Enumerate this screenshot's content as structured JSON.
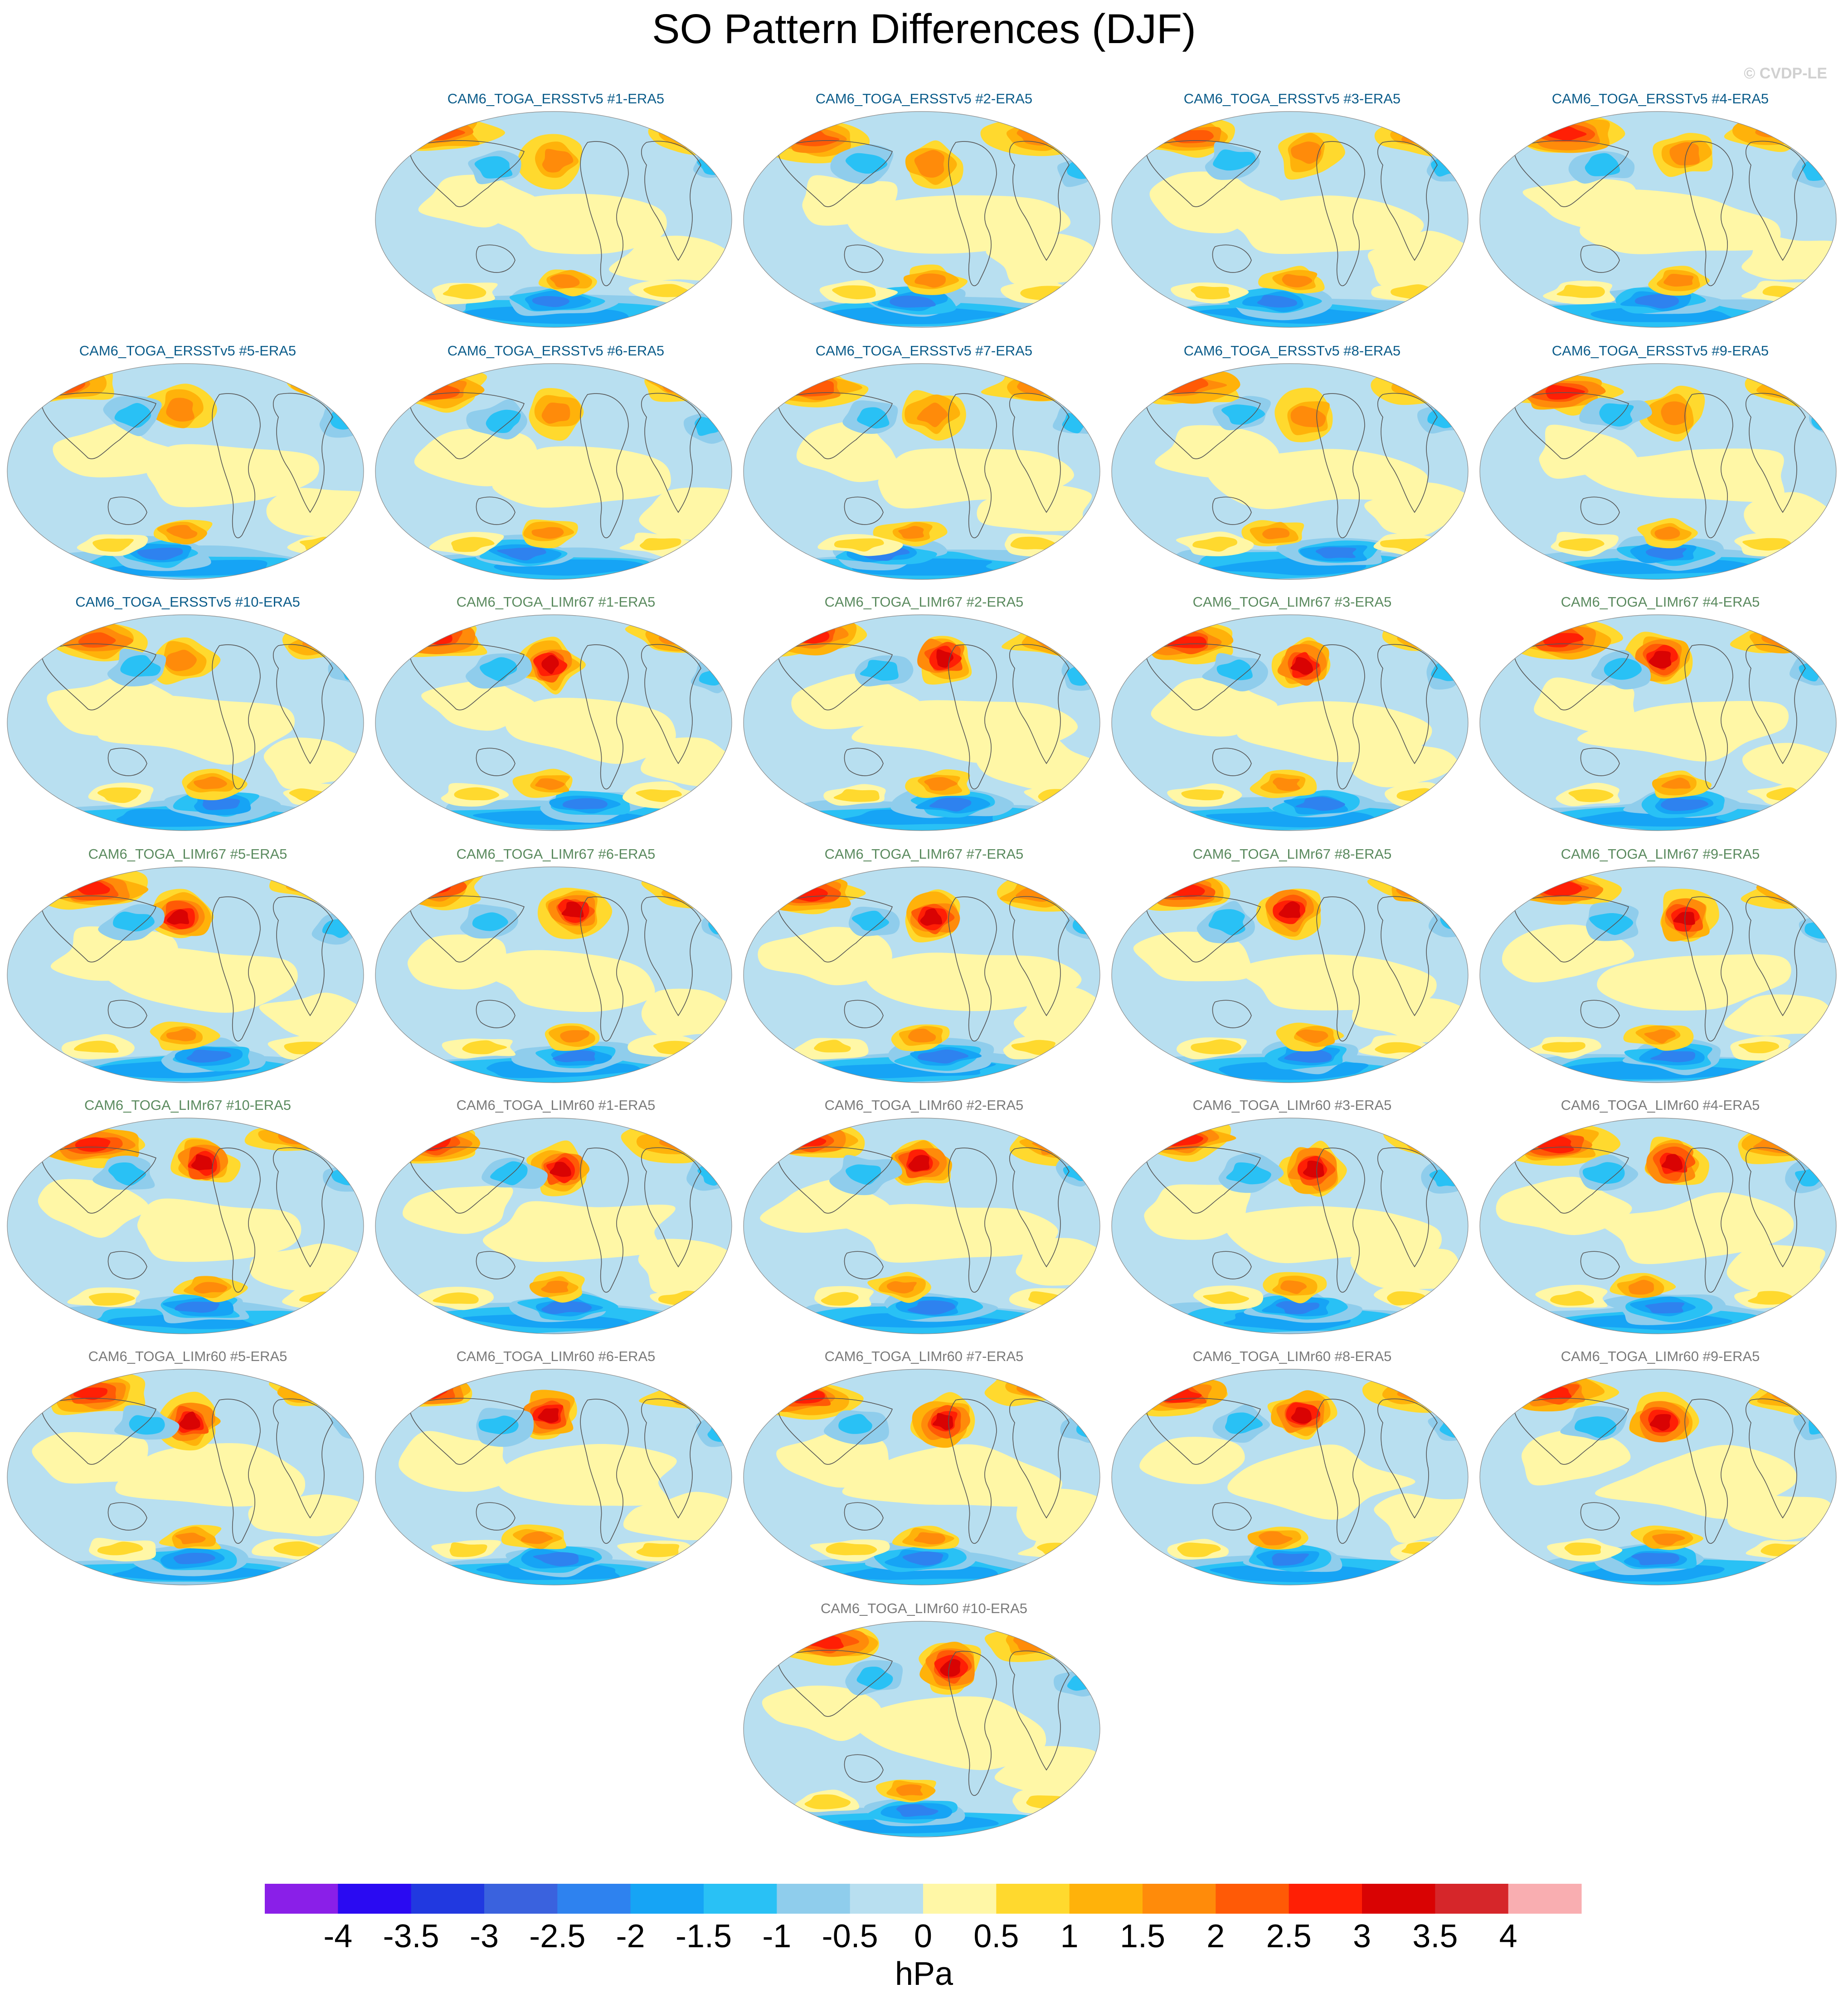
{
  "title": "SO Pattern Differences (DJF)",
  "copyright": "© CVDP-LE",
  "colors": {
    "ersst_title": "#0b5c8a",
    "lim67_title": "#5a8a5e",
    "lim60_title": "#7a7a7a",
    "ocean_bg": "#b8dff0",
    "coast": "#555555"
  },
  "panels": [
    {
      "label": "CAM6_TOGA_ERSSTv5 #1-ERA5",
      "group": "ersst"
    },
    {
      "label": "CAM6_TOGA_ERSSTv5 #2-ERA5",
      "group": "ersst"
    },
    {
      "label": "CAM6_TOGA_ERSSTv5 #3-ERA5",
      "group": "ersst"
    },
    {
      "label": "CAM6_TOGA_ERSSTv5 #4-ERA5",
      "group": "ersst"
    },
    {
      "label": "CAM6_TOGA_ERSSTv5 #5-ERA5",
      "group": "ersst"
    },
    {
      "label": "CAM6_TOGA_ERSSTv5 #6-ERA5",
      "group": "ersst"
    },
    {
      "label": "CAM6_TOGA_ERSSTv5 #7-ERA5",
      "group": "ersst"
    },
    {
      "label": "CAM6_TOGA_ERSSTv5 #8-ERA5",
      "group": "ersst"
    },
    {
      "label": "CAM6_TOGA_ERSSTv5 #9-ERA5",
      "group": "ersst"
    },
    {
      "label": "CAM6_TOGA_ERSSTv5 #10-ERA5",
      "group": "ersst"
    },
    {
      "label": "CAM6_TOGA_LIMr67 #1-ERA5",
      "group": "lim67"
    },
    {
      "label": "CAM6_TOGA_LIMr67 #2-ERA5",
      "group": "lim67"
    },
    {
      "label": "CAM6_TOGA_LIMr67 #3-ERA5",
      "group": "lim67"
    },
    {
      "label": "CAM6_TOGA_LIMr67 #4-ERA5",
      "group": "lim67"
    },
    {
      "label": "CAM6_TOGA_LIMr67 #5-ERA5",
      "group": "lim67"
    },
    {
      "label": "CAM6_TOGA_LIMr67 #6-ERA5",
      "group": "lim67"
    },
    {
      "label": "CAM6_TOGA_LIMr67 #7-ERA5",
      "group": "lim67"
    },
    {
      "label": "CAM6_TOGA_LIMr67 #8-ERA5",
      "group": "lim67"
    },
    {
      "label": "CAM6_TOGA_LIMr67 #9-ERA5",
      "group": "lim67"
    },
    {
      "label": "CAM6_TOGA_LIMr67 #10-ERA5",
      "group": "lim67"
    },
    {
      "label": "CAM6_TOGA_LIMr60 #1-ERA5",
      "group": "lim60"
    },
    {
      "label": "CAM6_TOGA_LIMr60 #2-ERA5",
      "group": "lim60"
    },
    {
      "label": "CAM6_TOGA_LIMr60 #3-ERA5",
      "group": "lim60"
    },
    {
      "label": "CAM6_TOGA_LIMr60 #4-ERA5",
      "group": "lim60"
    },
    {
      "label": "CAM6_TOGA_LIMr60 #5-ERA5",
      "group": "lim60"
    },
    {
      "label": "CAM6_TOGA_LIMr60 #6-ERA5",
      "group": "lim60"
    },
    {
      "label": "CAM6_TOGA_LIMr60 #7-ERA5",
      "group": "lim60"
    },
    {
      "label": "CAM6_TOGA_LIMr60 #8-ERA5",
      "group": "lim60"
    },
    {
      "label": "CAM6_TOGA_LIMr60 #9-ERA5",
      "group": "lim60"
    },
    {
      "label": "CAM6_TOGA_LIMr60 #10-ERA5",
      "group": "lim60"
    }
  ],
  "chart_data": {
    "type": "heatmap",
    "title": "SO Pattern Differences (DJF)",
    "units": "hPa",
    "colorbar": {
      "ticks": [
        "-4",
        "-3.5",
        "-3",
        "-2.5",
        "-2",
        "-1.5",
        "-1",
        "-0.5",
        "0",
        "0.5",
        "1",
        "1.5",
        "2",
        "2.5",
        "3",
        "3.5",
        "4"
      ],
      "colors": [
        "#8a1fe8",
        "#2a0af2",
        "#2139e0",
        "#3a62de",
        "#2e82ef",
        "#16a4f5",
        "#29c1f5",
        "#8fcdec",
        "#b8dff0",
        "#fff7a6",
        "#ffd92e",
        "#ffb20a",
        "#ff8b0a",
        "#ff5a06",
        "#ff1f05",
        "#d90303",
        "#d6262a",
        "#f9aeb1"
      ]
    }
  }
}
